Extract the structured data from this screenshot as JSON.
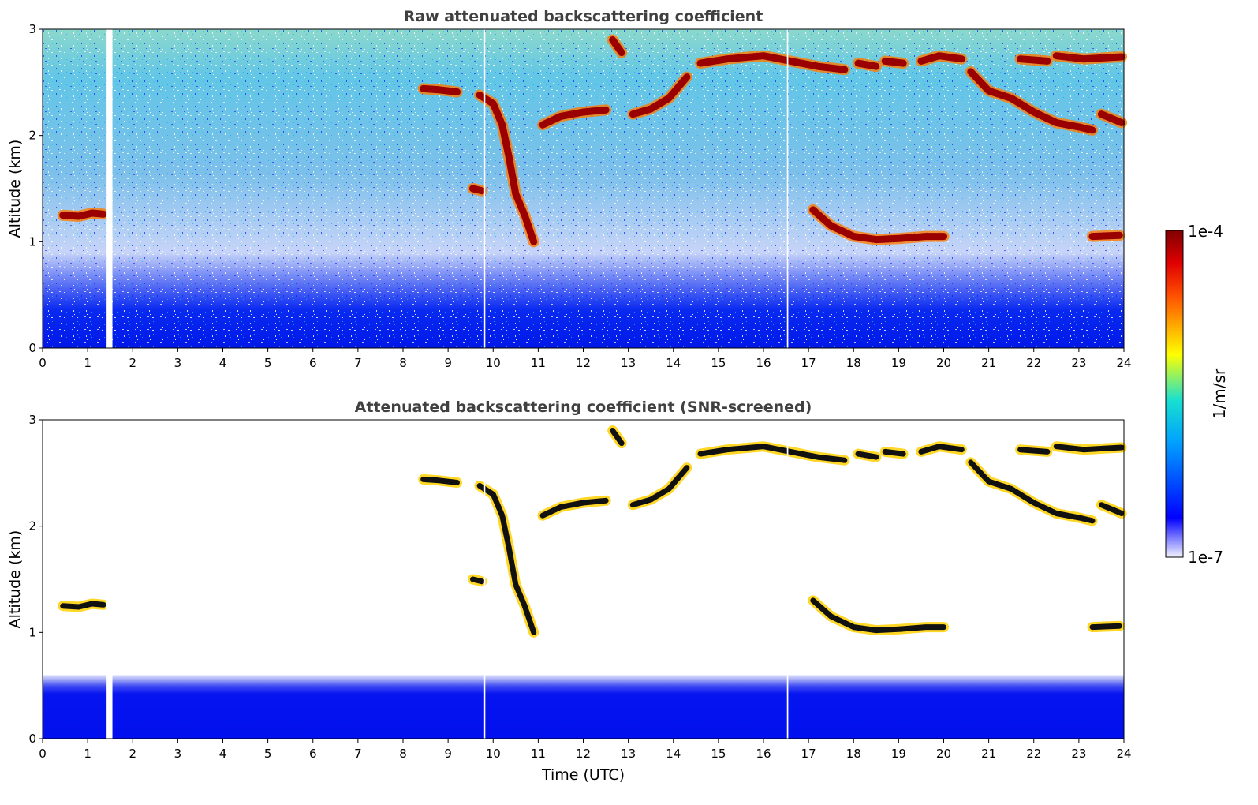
{
  "chart_data": [
    {
      "type": "heatmap",
      "title": "Raw attenuated backscattering coefficient",
      "xlabel": "",
      "ylabel": "Altitude (km)",
      "xlim": [
        0,
        24
      ],
      "ylim": [
        0,
        3
      ],
      "xticks": [
        "0",
        "1",
        "2",
        "3",
        "4",
        "5",
        "6",
        "7",
        "8",
        "9",
        "10",
        "11",
        "12",
        "13",
        "14",
        "15",
        "16",
        "17",
        "18",
        "19",
        "20",
        "21",
        "22",
        "23",
        "24"
      ],
      "yticks": [
        "0",
        "1",
        "2",
        "3"
      ],
      "screened": false,
      "data_gaps": [
        {
          "x": [
            1.42,
            1.55
          ]
        },
        {
          "x": [
            9.8,
            9.82
          ]
        },
        {
          "x": [
            16.52,
            16.55
          ]
        }
      ],
      "cloud_layers": [
        {
          "points": [
            [
              0.45,
              1.25
            ],
            [
              0.8,
              1.24
            ],
            [
              1.1,
              1.27
            ],
            [
              1.35,
              1.26
            ]
          ]
        },
        {
          "points": [
            [
              8.45,
              2.44
            ],
            [
              8.8,
              2.43
            ],
            [
              9.2,
              2.41
            ]
          ]
        },
        {
          "points": [
            [
              9.55,
              1.5
            ],
            [
              9.75,
              1.48
            ]
          ]
        },
        {
          "points": [
            [
              9.7,
              2.38
            ],
            [
              10.0,
              2.3
            ],
            [
              10.2,
              2.1
            ],
            [
              10.35,
              1.8
            ],
            [
              10.5,
              1.45
            ],
            [
              10.7,
              1.25
            ],
            [
              10.9,
              1.0
            ]
          ]
        },
        {
          "points": [
            [
              11.1,
              2.1
            ],
            [
              11.5,
              2.18
            ],
            [
              12.0,
              2.22
            ],
            [
              12.5,
              2.24
            ]
          ]
        },
        {
          "points": [
            [
              12.65,
              2.9
            ],
            [
              12.85,
              2.78
            ]
          ]
        },
        {
          "points": [
            [
              13.1,
              2.2
            ],
            [
              13.5,
              2.25
            ],
            [
              13.9,
              2.35
            ],
            [
              14.3,
              2.55
            ]
          ]
        },
        {
          "points": [
            [
              14.6,
              2.68
            ],
            [
              15.2,
              2.72
            ],
            [
              16.0,
              2.75
            ],
            [
              16.6,
              2.7
            ],
            [
              17.2,
              2.65
            ],
            [
              17.8,
              2.62
            ]
          ]
        },
        {
          "points": [
            [
              18.1,
              2.68
            ],
            [
              18.5,
              2.65
            ]
          ]
        },
        {
          "points": [
            [
              18.7,
              2.7
            ],
            [
              19.1,
              2.68
            ]
          ]
        },
        {
          "points": [
            [
              19.5,
              2.7
            ],
            [
              19.9,
              2.75
            ],
            [
              20.4,
              2.72
            ]
          ]
        },
        {
          "points": [
            [
              20.6,
              2.6
            ],
            [
              21.0,
              2.42
            ],
            [
              21.5,
              2.35
            ],
            [
              22.0,
              2.22
            ],
            [
              22.5,
              2.12
            ],
            [
              23.0,
              2.08
            ],
            [
              23.3,
              2.05
            ]
          ]
        },
        {
          "points": [
            [
              21.7,
              2.72
            ],
            [
              22.3,
              2.7
            ]
          ]
        },
        {
          "points": [
            [
              22.5,
              2.75
            ],
            [
              23.1,
              2.72
            ],
            [
              23.95,
              2.74
            ]
          ]
        },
        {
          "points": [
            [
              23.5,
              2.2
            ],
            [
              23.95,
              2.12
            ]
          ]
        },
        {
          "points": [
            [
              17.1,
              1.3
            ],
            [
              17.5,
              1.15
            ],
            [
              18.0,
              1.05
            ],
            [
              18.5,
              1.02
            ],
            [
              19.0,
              1.03
            ],
            [
              19.6,
              1.05
            ],
            [
              20.0,
              1.05
            ]
          ]
        },
        {
          "points": [
            [
              23.3,
              1.05
            ],
            [
              23.9,
              1.06
            ]
          ]
        }
      ],
      "colorbar": {
        "min_label": "1e-7",
        "max_label": "1e-4",
        "label": "1/m/sr",
        "scale": "log",
        "colormap": "jet"
      }
    },
    {
      "type": "heatmap",
      "title": "Attenuated backscattering coefficient (SNR-screened)",
      "xlabel": "Time (UTC)",
      "ylabel": "Altitude (km)",
      "xlim": [
        0,
        24
      ],
      "ylim": [
        0,
        3
      ],
      "xticks": [
        "0",
        "1",
        "2",
        "3",
        "4",
        "5",
        "6",
        "7",
        "8",
        "9",
        "10",
        "11",
        "12",
        "13",
        "14",
        "15",
        "16",
        "17",
        "18",
        "19",
        "20",
        "21",
        "22",
        "23",
        "24"
      ],
      "yticks": [
        "0",
        "1",
        "2",
        "3"
      ],
      "screened": true,
      "data_gaps": [
        {
          "x": [
            1.42,
            1.55
          ]
        },
        {
          "x": [
            9.8,
            9.82
          ]
        },
        {
          "x": [
            16.52,
            16.55
          ]
        }
      ],
      "cloud_layers": [
        {
          "points": [
            [
              0.45,
              1.25
            ],
            [
              0.8,
              1.24
            ],
            [
              1.1,
              1.27
            ],
            [
              1.35,
              1.26
            ]
          ]
        },
        {
          "points": [
            [
              8.45,
              2.44
            ],
            [
              8.8,
              2.43
            ],
            [
              9.2,
              2.41
            ]
          ]
        },
        {
          "points": [
            [
              9.55,
              1.5
            ],
            [
              9.75,
              1.48
            ]
          ]
        },
        {
          "points": [
            [
              9.7,
              2.38
            ],
            [
              10.0,
              2.3
            ],
            [
              10.2,
              2.1
            ],
            [
              10.35,
              1.8
            ],
            [
              10.5,
              1.45
            ],
            [
              10.7,
              1.25
            ],
            [
              10.9,
              1.0
            ]
          ]
        },
        {
          "points": [
            [
              11.1,
              2.1
            ],
            [
              11.5,
              2.18
            ],
            [
              12.0,
              2.22
            ],
            [
              12.5,
              2.24
            ]
          ]
        },
        {
          "points": [
            [
              12.65,
              2.9
            ],
            [
              12.85,
              2.78
            ]
          ]
        },
        {
          "points": [
            [
              13.1,
              2.2
            ],
            [
              13.5,
              2.25
            ],
            [
              13.9,
              2.35
            ],
            [
              14.3,
              2.55
            ]
          ]
        },
        {
          "points": [
            [
              14.6,
              2.68
            ],
            [
              15.2,
              2.72
            ],
            [
              16.0,
              2.75
            ],
            [
              16.6,
              2.7
            ],
            [
              17.2,
              2.65
            ],
            [
              17.8,
              2.62
            ]
          ]
        },
        {
          "points": [
            [
              18.1,
              2.68
            ],
            [
              18.5,
              2.65
            ]
          ]
        },
        {
          "points": [
            [
              18.7,
              2.7
            ],
            [
              19.1,
              2.68
            ]
          ]
        },
        {
          "points": [
            [
              19.5,
              2.7
            ],
            [
              19.9,
              2.75
            ],
            [
              20.4,
              2.72
            ]
          ]
        },
        {
          "points": [
            [
              20.6,
              2.6
            ],
            [
              21.0,
              2.42
            ],
            [
              21.5,
              2.35
            ],
            [
              22.0,
              2.22
            ],
            [
              22.5,
              2.12
            ],
            [
              23.0,
              2.08
            ],
            [
              23.3,
              2.05
            ]
          ]
        },
        {
          "points": [
            [
              21.7,
              2.72
            ],
            [
              22.3,
              2.7
            ]
          ]
        },
        {
          "points": [
            [
              22.5,
              2.75
            ],
            [
              23.1,
              2.72
            ],
            [
              23.95,
              2.74
            ]
          ]
        },
        {
          "points": [
            [
              23.5,
              2.2
            ],
            [
              23.95,
              2.12
            ]
          ]
        },
        {
          "points": [
            [
              17.1,
              1.3
            ],
            [
              17.5,
              1.15
            ],
            [
              18.0,
              1.05
            ],
            [
              18.5,
              1.02
            ],
            [
              19.0,
              1.03
            ],
            [
              19.6,
              1.05
            ],
            [
              20.0,
              1.05
            ]
          ]
        },
        {
          "points": [
            [
              23.3,
              1.05
            ],
            [
              23.9,
              1.06
            ]
          ]
        }
      ],
      "colorbar": {
        "min_label": "1e-7",
        "max_label": "1e-4",
        "label": "1/m/sr",
        "scale": "log",
        "colormap": "jet"
      }
    }
  ],
  "colorbar": {
    "min_label": "1e-7",
    "max_label": "1e-4",
    "label": "1/m/sr"
  }
}
